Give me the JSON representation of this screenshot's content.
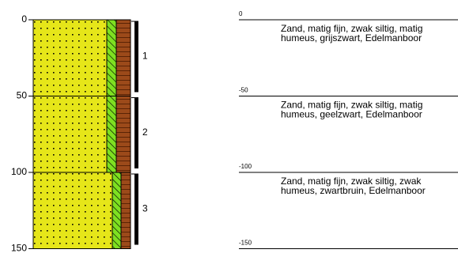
{
  "axis": {
    "ticks": [
      0,
      50,
      100,
      150
    ]
  },
  "levels": [
    0,
    -50,
    -100,
    -150
  ],
  "layers": [
    {
      "id": "1",
      "top": 0,
      "bottom": 50,
      "description": [
        "Zand, matig fijn, zwak siltig, matig",
        "humeus, grijszwart, Edelmanboor"
      ]
    },
    {
      "id": "2",
      "top": 50,
      "bottom": 100,
      "description": [
        "Zand, matig fijn, zwak siltig, matig",
        "humeus, geelzwart, Edelmanboor"
      ]
    },
    {
      "id": "3",
      "top": 100,
      "bottom": 150,
      "description": [
        "Zand, matig fijn, zwak siltig, zwak",
        "humeus, zwartbruin, Edelmanboor"
      ]
    }
  ]
}
